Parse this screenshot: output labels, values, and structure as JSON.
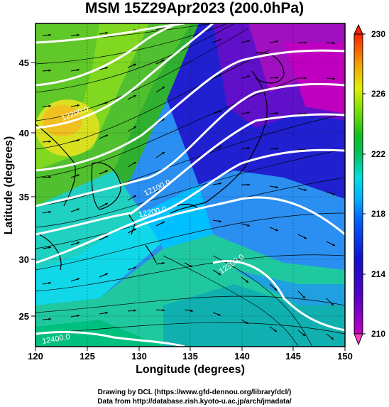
{
  "header": {
    "title": "MSM 15Z29Apr2023 (200.0hPa)"
  },
  "axes": {
    "xlabel": "Longitude (degrees)",
    "ylabel": "Latitude  (degrees)",
    "x_ticks": [
      "120",
      "125",
      "130",
      "135",
      "140",
      "145",
      "150"
    ],
    "y_ticks": [
      "25",
      "30",
      "35",
      "40",
      "45"
    ],
    "x_range": [
      120,
      150
    ],
    "y_range": [
      22.4,
      47.6
    ]
  },
  "colorbar": {
    "ticks": [
      "210",
      "214",
      "218",
      "222",
      "226",
      "230"
    ],
    "range": [
      210,
      230
    ]
  },
  "contours": [
    {
      "label": "12200.0",
      "value": 12200
    },
    {
      "label": "12100.0",
      "value": 12100
    },
    {
      "label": "12200.0",
      "value": 12200
    },
    {
      "label": "12300.0",
      "value": 12300
    },
    {
      "label": "12400.0",
      "value": 12400
    }
  ],
  "footer": {
    "credit_line1": "Drawing by DCL (https://www.gfd-dennou.org/library/dcl/)",
    "credit_line2": "Data from http://database.rish.kyoto-u.ac.jp/arch/jmadata/"
  }
}
